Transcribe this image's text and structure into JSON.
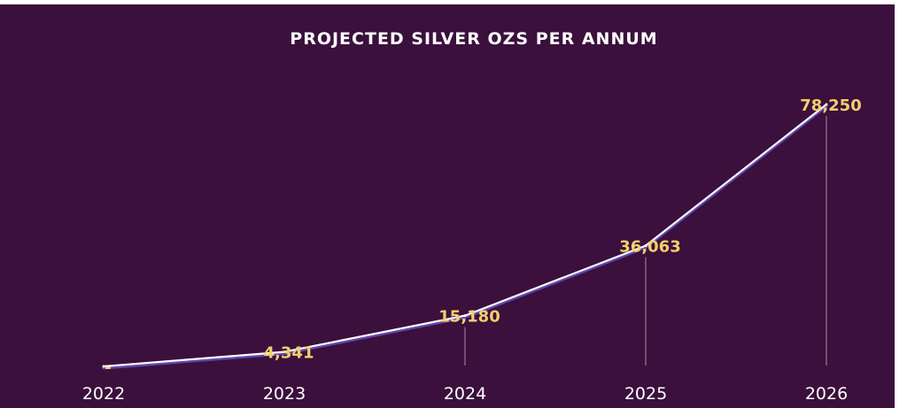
{
  "colors": {
    "background": "#3b103d",
    "line": "#ffffff",
    "line_shadow": "#6a55c8",
    "data_label": "#f2cf6a",
    "drop_line": "#a88aa8"
  },
  "chart_data": {
    "type": "line",
    "title": "PROJECTED SILVER OZS PER ANNUM",
    "xlabel": "",
    "ylabel": "",
    "categories": [
      "2022",
      "2023",
      "2024",
      "2025",
      "2026"
    ],
    "values": [
      0,
      4341,
      15180,
      36063,
      78250
    ],
    "value_labels": [
      "-",
      "4,341",
      "15,180",
      "36,063",
      "78,250"
    ],
    "ylim": [
      0,
      78250
    ],
    "grid": false,
    "legend": "none"
  }
}
